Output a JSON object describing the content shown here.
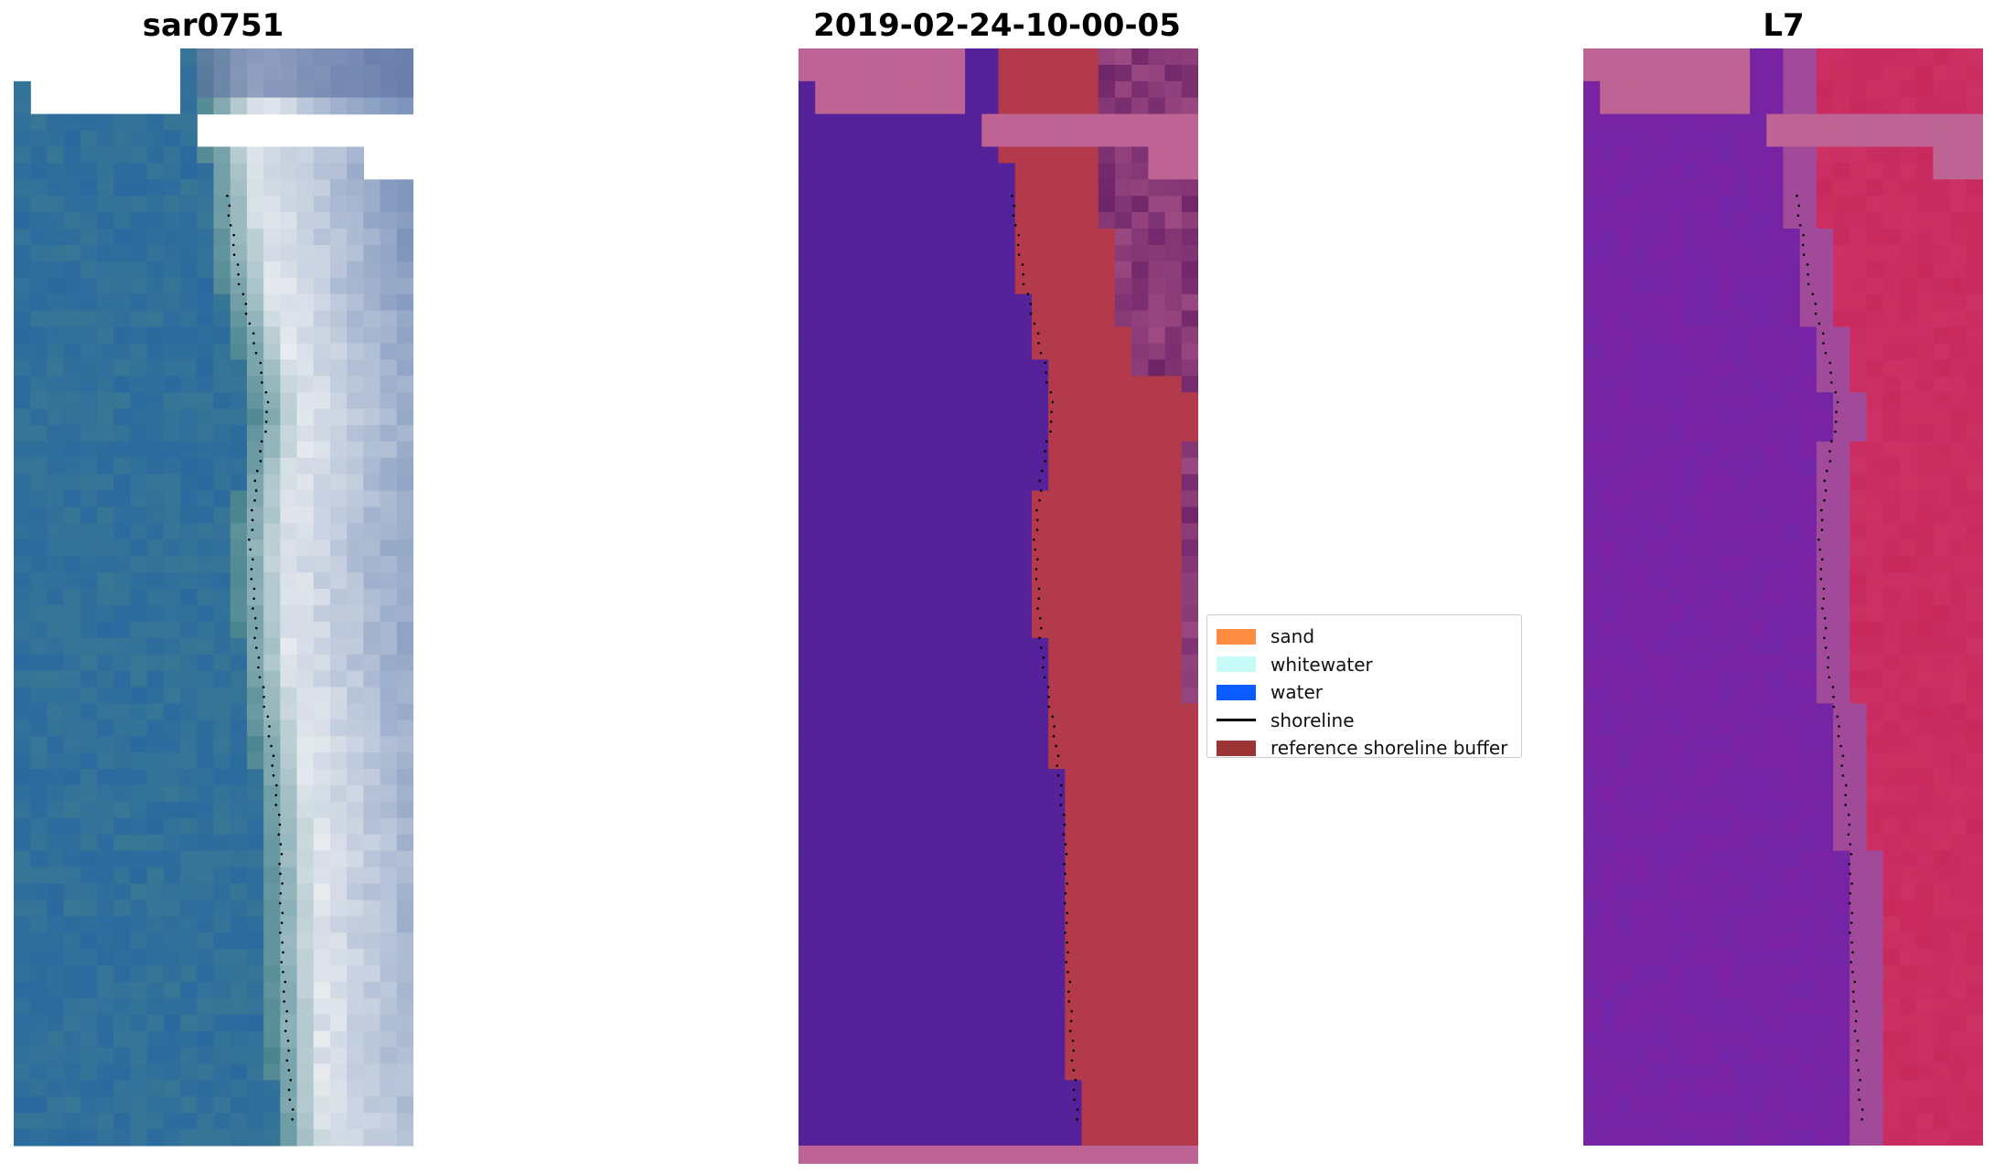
{
  "panels": [
    {
      "title": "sar0751"
    },
    {
      "title": "2019-02-24-10-00-05"
    },
    {
      "title": "L7"
    }
  ],
  "legend": {
    "items": [
      {
        "label": "sand",
        "color": "#ff8c42"
      },
      {
        "label": "whitewater",
        "color": "#c7fbf8"
      },
      {
        "label": "water",
        "color": "#0a5cff"
      },
      {
        "label": "shoreline",
        "color": "#000000"
      },
      {
        "label": "reference shoreline buffer",
        "color": "#9b3535"
      }
    ]
  },
  "colors": {
    "classified_water": "#55229a",
    "classified_buffer": "#b23a4a",
    "classified_nodata": "#bd6494",
    "l7_water": "#7a22a2",
    "l7_land": "#c82a5e",
    "l7_nodata": "#bd6494",
    "rgb_ocean": "#2a6a9f",
    "rgb_surf": "#e8ecf0"
  }
}
